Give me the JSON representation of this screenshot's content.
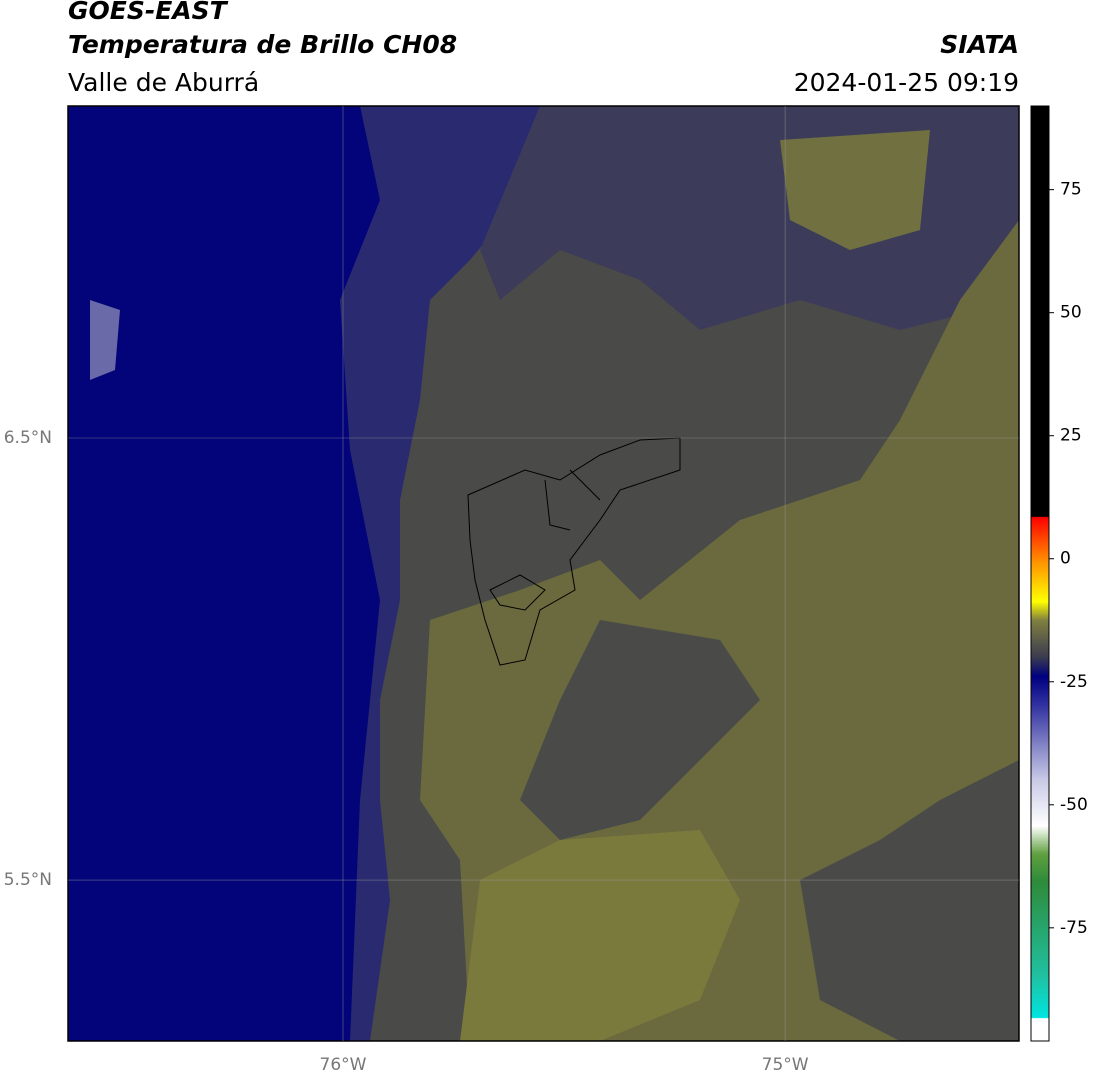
{
  "header": {
    "title": "GOES-EAST",
    "subtitle": "Temperatura de Brillo CH08",
    "region": "Valle de Aburrá",
    "source": "SIATA",
    "datetime": "2024-01-25 09:19"
  },
  "map": {
    "lonlim": [
      -76.622,
      -74.471
    ],
    "latlim": [
      5.136,
      7.251
    ],
    "lon_ticks": [
      {
        "value": -76,
        "label": "76°W"
      },
      {
        "value": -75,
        "label": "75°W"
      }
    ],
    "lat_ticks": [
      {
        "value": 6.5,
        "label": "6.5°N"
      },
      {
        "value": 5.5,
        "label": "5.5°N"
      }
    ]
  },
  "colorbar": {
    "lim": [
      -98,
      92
    ],
    "ticks": [
      75,
      50,
      25,
      0,
      -25,
      -50,
      -75
    ]
  }
}
